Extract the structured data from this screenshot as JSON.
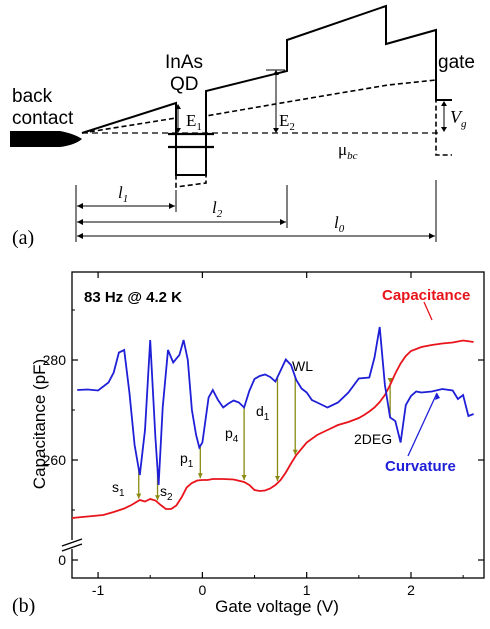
{
  "panel_a": {
    "label": "(a)",
    "back_contact_line1": "back",
    "back_contact_line2": "contact",
    "qd_line1": "InAs",
    "qd_line2": "QD",
    "gate": "gate",
    "e1": "E",
    "e1_sub": "1",
    "e2": "E",
    "e2_sub": "2",
    "vg": "V",
    "vg_sub": "g",
    "mu": "μ",
    "mu_sub": "bc",
    "l1": "l",
    "l1_sub": "1",
    "l2": "l",
    "l2_sub": "2",
    "l0": "l",
    "l0_sub": "0"
  },
  "panel_b": {
    "label": "(b)",
    "condition": "83 Hz @ 4.2 K",
    "capacitance_label": "Capacitance",
    "curvature_label": "Curvature",
    "state_labels": [
      {
        "id": "s1",
        "text": "s",
        "sub": "1"
      },
      {
        "id": "s2",
        "text": "s",
        "sub": "2"
      },
      {
        "id": "p1",
        "text": "p",
        "sub": "1"
      },
      {
        "id": "p4",
        "text": "p",
        "sub": "4"
      },
      {
        "id": "d1",
        "text": "d",
        "sub": "1"
      },
      {
        "id": "wl",
        "text": "WL",
        "sub": ""
      },
      {
        "id": "2deg",
        "text": "2DEG",
        "sub": ""
      }
    ]
  },
  "chart_data": {
    "type": "line",
    "xlabel": "Gate voltage (V)",
    "ylabel": "Capacitance (pF)",
    "xlim": [
      -1.25,
      2.7
    ],
    "x_ticks": [
      -1,
      0,
      1,
      2
    ],
    "y_ticks": [
      0,
      260,
      280
    ],
    "y_axis_break": true,
    "grid": false,
    "colors": {
      "capacitance": "#e8141c",
      "curvature": "#1f1fd8",
      "marker": "#8a8a10"
    },
    "series": [
      {
        "name": "Capacitance",
        "x": [
          -1.25,
          -1.1,
          -0.95,
          -0.85,
          -0.75,
          -0.68,
          -0.6,
          -0.55,
          -0.5,
          -0.45,
          -0.4,
          -0.35,
          -0.3,
          -0.25,
          -0.2,
          -0.15,
          -0.1,
          -0.05,
          0.0,
          0.05,
          0.1,
          0.2,
          0.3,
          0.4,
          0.45,
          0.5,
          0.55,
          0.6,
          0.65,
          0.7,
          0.75,
          0.8,
          0.85,
          0.9,
          1.0,
          1.1,
          1.2,
          1.3,
          1.4,
          1.5,
          1.55,
          1.6,
          1.65,
          1.7,
          1.75,
          1.8,
          1.85,
          1.9,
          1.95,
          2.0,
          2.1,
          2.2,
          2.3,
          2.4,
          2.5,
          2.6
        ],
        "y": [
          248.4,
          248.7,
          249.0,
          249.6,
          250.3,
          251.0,
          252.0,
          251.7,
          252.2,
          251.9,
          251.0,
          250.2,
          250.2,
          250.9,
          252.5,
          254.5,
          255.4,
          255.9,
          256.0,
          256.0,
          256.2,
          256.2,
          256.1,
          255.6,
          255.0,
          254.0,
          253.8,
          253.9,
          254.3,
          255.0,
          256.0,
          257.5,
          259.3,
          261.0,
          263.5,
          265.0,
          266.0,
          267.0,
          267.6,
          268.4,
          269.0,
          269.7,
          270.5,
          271.6,
          273.0,
          275.0,
          277.3,
          279.3,
          280.8,
          281.8,
          282.6,
          283.0,
          283.3,
          283.5,
          283.9,
          283.6
        ]
      },
      {
        "name": "Curvature",
        "x": [
          -1.2,
          -1.1,
          -1.0,
          -0.9,
          -0.85,
          -0.8,
          -0.75,
          -0.7,
          -0.65,
          -0.6,
          -0.55,
          -0.5,
          -0.45,
          -0.42,
          -0.38,
          -0.33,
          -0.28,
          -0.22,
          -0.18,
          -0.14,
          -0.1,
          -0.06,
          -0.03,
          0.0,
          0.03,
          0.06,
          0.1,
          0.15,
          0.2,
          0.25,
          0.3,
          0.35,
          0.4,
          0.45,
          0.5,
          0.55,
          0.6,
          0.65,
          0.7,
          0.75,
          0.8,
          0.85,
          0.9,
          0.95,
          1.0,
          1.05,
          1.1,
          1.2,
          1.3,
          1.4,
          1.5,
          1.6,
          1.65,
          1.7,
          1.75,
          1.8,
          1.85,
          1.9,
          1.95,
          2.0,
          2.05,
          2.1,
          2.2,
          2.3,
          2.4,
          2.45,
          2.5,
          2.55,
          2.6
        ],
        "y": [
          274.0,
          274.1,
          273.9,
          275.5,
          277.5,
          281.5,
          282.0,
          273.5,
          263.0,
          257.0,
          266.0,
          284.0,
          264.5,
          255.0,
          270.5,
          282.0,
          279.5,
          281.0,
          284.0,
          280.0,
          270.0,
          265.0,
          262.5,
          263.5,
          268.0,
          272.5,
          274.0,
          272.0,
          270.5,
          271.3,
          271.9,
          271.5,
          270.5,
          273.8,
          276.2,
          276.8,
          277.1,
          276.6,
          275.7,
          277.9,
          280.1,
          279.0,
          276.0,
          274.3,
          273.5,
          272.0,
          271.5,
          270.5,
          271.5,
          273.5,
          276.3,
          276.5,
          280.5,
          286.6,
          275.0,
          268.5,
          267.8,
          263.5,
          271.0,
          272.8,
          273.7,
          273.5,
          273.7,
          274.2,
          273.9,
          272.2,
          273.0,
          268.8,
          269.2
        ]
      }
    ],
    "markers": [
      {
        "label": "s1",
        "x": -0.61
      },
      {
        "label": "s2",
        "x": -0.43
      },
      {
        "label": "p1",
        "x": -0.02
      },
      {
        "label": "p4",
        "x": 0.4
      },
      {
        "label": "d1",
        "x": 0.72
      },
      {
        "label": "WL",
        "x": 0.89
      },
      {
        "label": "2DEG",
        "x": 1.8
      }
    ]
  }
}
